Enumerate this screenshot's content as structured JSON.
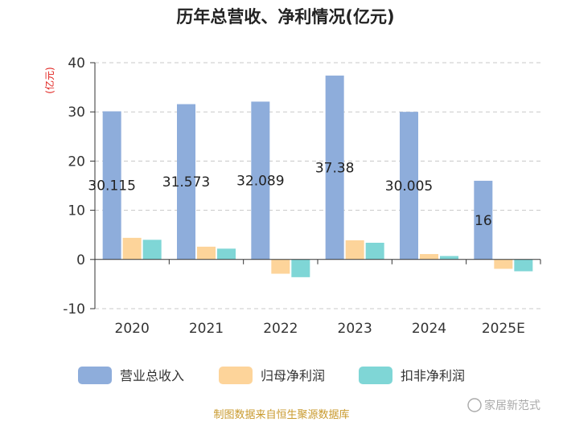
{
  "chart_data": {
    "type": "bar",
    "title": "历年总营收、净利情况(亿元)",
    "ylabel": "(亿元)",
    "xlabel": "",
    "ylim": [
      -10,
      40
    ],
    "yticks": [
      -10,
      0,
      10,
      20,
      30,
      40
    ],
    "grid": true,
    "legend_position": "bottom",
    "categories": [
      "2020",
      "2021",
      "2022",
      "2023",
      "2024",
      "2025E"
    ],
    "series": [
      {
        "name": "营业总收入",
        "color": "#8eaddb",
        "values": [
          30.115,
          31.573,
          32.089,
          37.38,
          30.005,
          16
        ],
        "labels": [
          "30.115",
          "31.573",
          "32.089",
          "37.38",
          "30.005",
          "16"
        ]
      },
      {
        "name": "归母净利润",
        "color": "#fdd49a",
        "values": [
          4.4,
          2.6,
          -2.9,
          3.9,
          1.1,
          -1.9
        ]
      },
      {
        "name": "扣非净利润",
        "color": "#7fd6d6",
        "values": [
          4.0,
          2.2,
          -3.6,
          3.4,
          0.7,
          -2.4
        ]
      }
    ],
    "source": "制图数据来自恒生聚源数据库",
    "watermark": "家居新范式"
  }
}
